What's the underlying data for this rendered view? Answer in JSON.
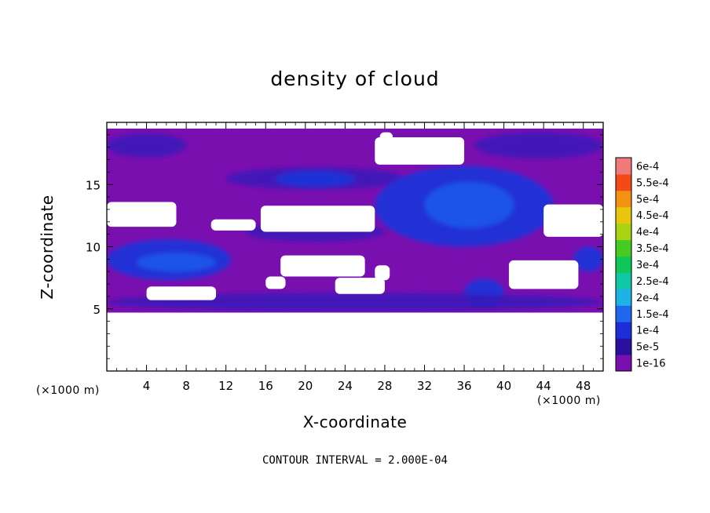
{
  "chart_data": {
    "type": "heatmap",
    "title": "density of cloud",
    "xlabel": "X-coordinate",
    "ylabel": "Z-coordinate",
    "x_unit": "(×1000 m)",
    "y_unit": "(×1000 m)",
    "xlim": [
      0,
      50
    ],
    "ylim": [
      0,
      20
    ],
    "x_ticks": [
      "4",
      "8",
      "12",
      "16",
      "20",
      "24",
      "28",
      "32",
      "36",
      "40",
      "44",
      "48"
    ],
    "y_ticks": [
      "5",
      "10",
      "15"
    ],
    "footnote": "CONTOUR INTERVAL = 2.000E-04",
    "colorbar": {
      "labels": [
        "1e-16",
        "5e-5",
        "1e-4",
        "1.5e-4",
        "2e-4",
        "2.5e-4",
        "3e-4",
        "3.5e-4",
        "4e-4",
        "4.5e-4",
        "5e-4",
        "5.5e-4",
        "6e-4"
      ],
      "colors": [
        "#7a0fb0",
        "#2a0fa0",
        "#1b2ed8",
        "#1f68ee",
        "#1fb2e6",
        "#11c8a6",
        "#10c85a",
        "#45cc21",
        "#a8d411",
        "#e8c60e",
        "#f49012",
        "#f44a16",
        "#f07a7a"
      ]
    },
    "regions": {
      "base_fill": "#7a0fb0",
      "base_level": "1e-16",
      "base_extent": {
        "x": [
          0,
          50
        ],
        "z": [
          4.7,
          19.5
        ]
      },
      "moderate_level": "5e-5",
      "high_level": "1e-4",
      "moderate_color": "#3816b8",
      "high_color": "#1b34d8",
      "bright_color": "#1f55ea",
      "clear_color": "#ffffff",
      "bands": [
        {
          "level": "moderate",
          "x": [
            0,
            8
          ],
          "z": [
            17.2,
            19.1
          ]
        },
        {
          "level": "moderate",
          "x": [
            12,
            30
          ],
          "z": [
            14.6,
            16.4
          ]
        },
        {
          "level": "high",
          "x": [
            17,
            25
          ],
          "z": [
            14.8,
            16.1
          ]
        },
        {
          "level": "moderate",
          "x": [
            37,
            50
          ],
          "z": [
            17.1,
            19.2
          ]
        },
        {
          "level": "high",
          "x": [
            27,
            45
          ],
          "z": [
            10.0,
            16.5
          ]
        },
        {
          "level": "bright",
          "x": [
            32,
            41
          ],
          "z": [
            11.5,
            15.2
          ]
        },
        {
          "level": "high",
          "x": [
            0,
            12.5
          ],
          "z": [
            7.3,
            10.6
          ]
        },
        {
          "level": "bright",
          "x": [
            3,
            11
          ],
          "z": [
            8.0,
            9.5
          ]
        },
        {
          "level": "moderate",
          "x": [
            14,
            28
          ],
          "z": [
            10.4,
            12.0
          ]
        },
        {
          "level": "high",
          "x": [
            36,
            40
          ],
          "z": [
            5.2,
            7.4
          ]
        },
        {
          "level": "high",
          "x": [
            47,
            50
          ],
          "z": [
            8.0,
            10.0
          ]
        },
        {
          "level": "moderate",
          "x": [
            0,
            50
          ],
          "z": [
            4.8,
            6.3
          ]
        }
      ],
      "clear_patches": [
        {
          "x": [
            0,
            7
          ],
          "z": [
            11.6,
            13.6
          ]
        },
        {
          "x": [
            10.5,
            15
          ],
          "z": [
            11.3,
            12.2
          ]
        },
        {
          "x": [
            15.5,
            27
          ],
          "z": [
            11.2,
            13.3
          ]
        },
        {
          "x": [
            17.5,
            26
          ],
          "z": [
            7.6,
            9.3
          ]
        },
        {
          "x": [
            27,
            28.5
          ],
          "z": [
            7.3,
            8.5
          ]
        },
        {
          "x": [
            16,
            18
          ],
          "z": [
            6.6,
            7.6
          ]
        },
        {
          "x": [
            23,
            28
          ],
          "z": [
            6.2,
            7.5
          ]
        },
        {
          "x": [
            4,
            11
          ],
          "z": [
            5.7,
            6.8
          ]
        },
        {
          "x": [
            40.5,
            47.5
          ],
          "z": [
            6.6,
            8.9
          ]
        },
        {
          "x": [
            44,
            50
          ],
          "z": [
            10.8,
            13.4
          ]
        },
        {
          "x": [
            27,
            36
          ],
          "z": [
            16.6,
            18.8
          ]
        },
        {
          "x": [
            27.5,
            28.8
          ],
          "z": [
            18.5,
            19.2
          ]
        },
        {
          "x": [
            0,
            50
          ],
          "z": [
            0,
            4.7
          ]
        }
      ]
    }
  }
}
